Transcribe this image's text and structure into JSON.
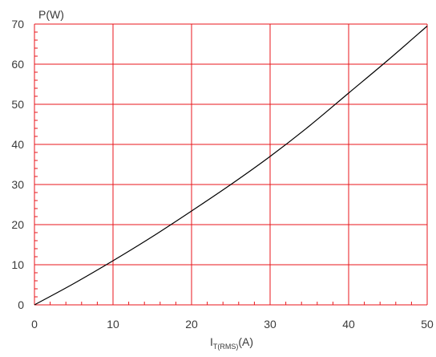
{
  "chart_data": {
    "type": "line",
    "ylabel": "P(W)",
    "xlabel": {
      "main": "I",
      "subscript": "T(RMS)",
      "suffix": "(A)"
    },
    "xlim": [
      0,
      50
    ],
    "ylim": [
      0,
      70
    ],
    "x_ticks": [
      0,
      10,
      20,
      30,
      40,
      50
    ],
    "y_ticks": [
      0,
      10,
      20,
      30,
      40,
      50,
      60,
      70
    ],
    "x_tick_labels": [
      "0",
      "10",
      "20",
      "30",
      "40",
      "50"
    ],
    "y_tick_labels": [
      "0",
      "10",
      "20",
      "30",
      "40",
      "50",
      "60",
      "70"
    ],
    "grid": true,
    "grid_color": "#e8161b",
    "series": [
      {
        "color": "#000000",
        "x": [
          0,
          5,
          10,
          15,
          20,
          25,
          30,
          35,
          40,
          45,
          50
        ],
        "y": [
          0,
          5.3,
          11.0,
          17.0,
          23.4,
          30.0,
          37.0,
          44.6,
          52.8,
          61.0,
          69.5
        ]
      }
    ]
  }
}
